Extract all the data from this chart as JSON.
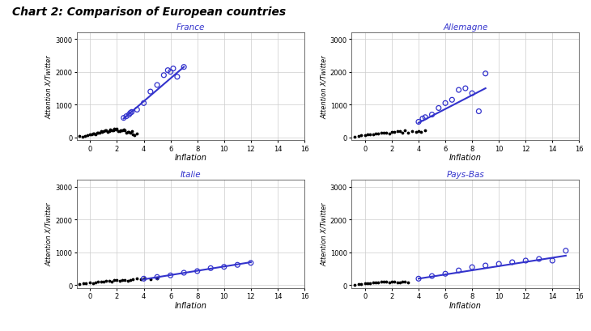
{
  "title": "Chart 2: Comparison of European countries",
  "subplots": [
    {
      "name": "France",
      "black_x": [
        -0.8,
        -0.6,
        -0.4,
        -0.2,
        0.0,
        0.1,
        0.2,
        0.3,
        0.4,
        0.5,
        0.6,
        0.7,
        0.8,
        0.9,
        1.0,
        1.1,
        1.2,
        1.3,
        1.4,
        1.5,
        1.6,
        1.7,
        1.8,
        1.9,
        2.0,
        2.1,
        2.2,
        2.3,
        2.4,
        2.5,
        2.6,
        2.7,
        2.8,
        2.9,
        3.0,
        3.1,
        3.2,
        3.3,
        3.5
      ],
      "black_y": [
        50,
        30,
        60,
        80,
        100,
        90,
        120,
        130,
        110,
        150,
        140,
        160,
        200,
        180,
        190,
        210,
        220,
        170,
        200,
        250,
        230,
        220,
        260,
        240,
        280,
        200,
        190,
        220,
        210,
        250,
        230,
        150,
        170,
        180,
        160,
        200,
        100,
        80,
        120
      ],
      "blue_x": [
        2.5,
        2.7,
        2.9,
        3.0,
        3.1,
        3.5,
        4.0,
        4.5,
        5.0,
        5.5,
        5.8,
        6.0,
        6.2,
        6.5,
        7.0
      ],
      "blue_y": [
        600,
        650,
        700,
        750,
        780,
        850,
        1050,
        1400,
        1600,
        1900,
        2050,
        2000,
        2100,
        1850,
        2150
      ],
      "line_x": [
        2.5,
        7.0
      ],
      "line_y": [
        580,
        2150
      ]
    },
    {
      "name": "Allemagne",
      "black_x": [
        -0.8,
        -0.5,
        -0.3,
        0.0,
        0.2,
        0.4,
        0.6,
        0.8,
        1.0,
        1.2,
        1.4,
        1.6,
        1.8,
        2.0,
        2.2,
        2.4,
        2.6,
        2.8,
        3.0,
        3.2,
        3.5,
        3.8,
        4.0,
        4.2,
        4.5
      ],
      "black_y": [
        30,
        50,
        70,
        80,
        100,
        90,
        110,
        130,
        120,
        150,
        140,
        160,
        130,
        180,
        170,
        200,
        190,
        160,
        220,
        150,
        200,
        180,
        200,
        170,
        220
      ],
      "blue_x": [
        4.0,
        4.3,
        4.5,
        5.0,
        5.5,
        6.0,
        6.5,
        7.0,
        7.5,
        8.0,
        8.5,
        9.0
      ],
      "blue_y": [
        480,
        580,
        620,
        700,
        900,
        1050,
        1150,
        1450,
        1500,
        1350,
        800,
        1950
      ],
      "line_x": [
        4.0,
        9.0
      ],
      "line_y": [
        450,
        1500
      ]
    },
    {
      "name": "Italie",
      "black_x": [
        -0.8,
        -0.5,
        -0.3,
        0.0,
        0.2,
        0.4,
        0.6,
        0.8,
        1.0,
        1.2,
        1.4,
        1.6,
        1.8,
        2.0,
        2.2,
        2.4,
        2.6,
        2.8,
        3.0,
        3.2,
        3.5,
        3.8,
        4.0,
        4.5,
        5.0
      ],
      "black_y": [
        30,
        50,
        60,
        80,
        70,
        90,
        100,
        110,
        120,
        130,
        140,
        120,
        150,
        160,
        130,
        170,
        150,
        140,
        160,
        180,
        200,
        180,
        200,
        190,
        220
      ],
      "blue_x": [
        4.0,
        5.0,
        6.0,
        7.0,
        8.0,
        9.0,
        10.0,
        11.0,
        12.0
      ],
      "blue_y": [
        200,
        250,
        300,
        380,
        430,
        520,
        560,
        620,
        680
      ],
      "line_x": [
        4.0,
        12.0
      ],
      "line_y": [
        180,
        700
      ]
    },
    {
      "name": "Pays-Bas",
      "black_x": [
        -0.8,
        -0.5,
        -0.3,
        0.0,
        0.2,
        0.4,
        0.6,
        0.8,
        1.0,
        1.2,
        1.4,
        1.6,
        1.8,
        2.0,
        2.2,
        2.4,
        2.6,
        2.8,
        3.0,
        3.2
      ],
      "black_y": [
        20,
        30,
        40,
        50,
        60,
        70,
        80,
        90,
        80,
        100,
        110,
        120,
        90,
        100,
        110,
        80,
        90,
        100,
        110,
        90
      ],
      "blue_x": [
        4.0,
        5.0,
        6.0,
        7.0,
        8.0,
        9.0,
        10.0,
        11.0,
        12.0,
        13.0,
        14.0,
        15.0
      ],
      "blue_y": [
        200,
        280,
        350,
        450,
        550,
        600,
        650,
        700,
        750,
        800,
        750,
        1050
      ],
      "line_x": [
        4.0,
        15.0
      ],
      "line_y": [
        200,
        900
      ]
    }
  ],
  "xlim": [
    -1,
    16
  ],
  "ylim": [
    -80,
    3200
  ],
  "xticks": [
    0,
    2,
    4,
    6,
    8,
    10,
    12,
    14,
    16
  ],
  "yticks": [
    0,
    1000,
    2000,
    3000
  ],
  "xlabel": "Inflation",
  "ylabel": "Attention X/Twitter",
  "blue_color": "#3333CC",
  "black_color": "#000000",
  "title_color": "#000000",
  "subplot_title_color": "#3333CC",
  "bg_color": "#FFFFFF",
  "grid_color": "#CCCCCC"
}
